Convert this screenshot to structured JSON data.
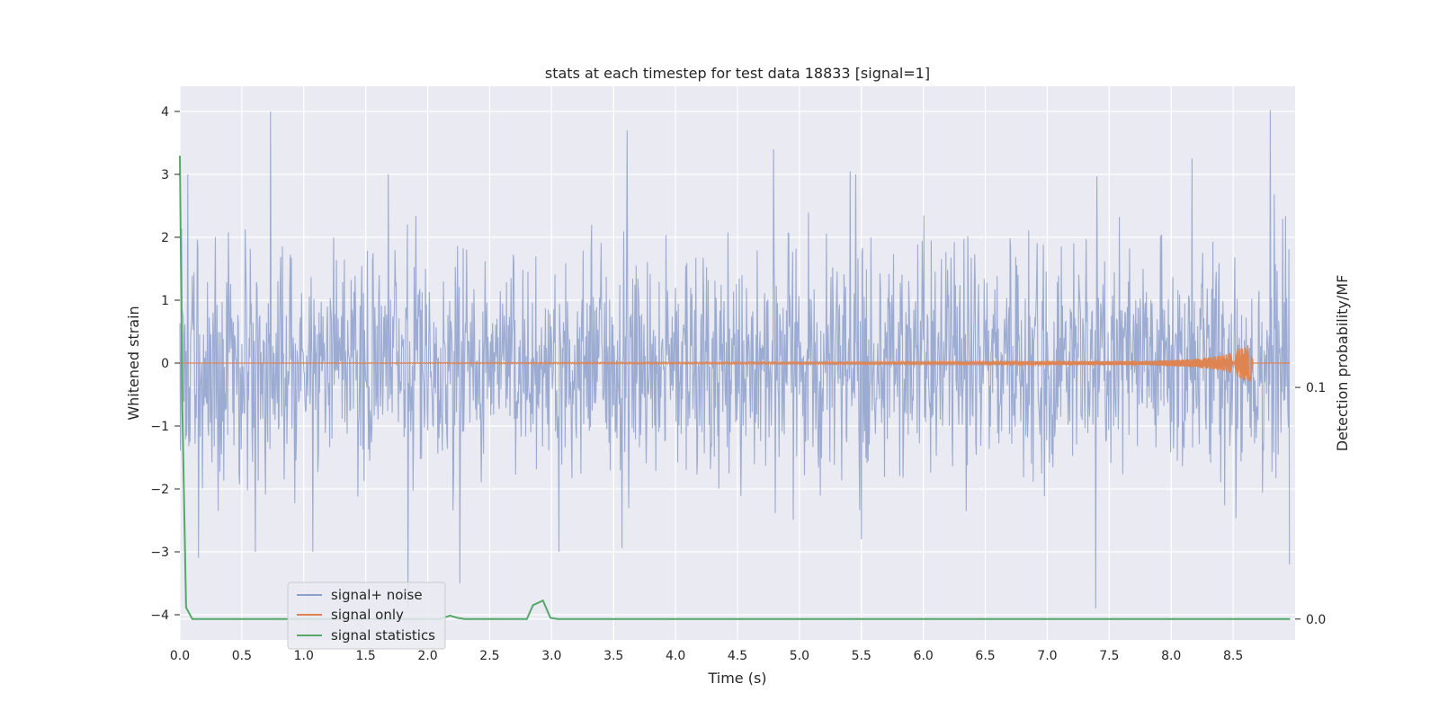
{
  "chart_data": {
    "type": "line",
    "title": "stats at each timestep for test data 18833 [signal=1]",
    "xlabel": "Time (s)",
    "ylabel": "Whitened strain",
    "y2label": "Detection probability/MF",
    "xlim": [
      0.0,
      9.0
    ],
    "ylim": [
      -4.4,
      4.4
    ],
    "y2lim": [
      -0.009,
      0.23
    ],
    "x_ticks": [
      0.0,
      0.5,
      1.0,
      1.5,
      2.0,
      2.5,
      3.0,
      3.5,
      4.0,
      4.5,
      5.0,
      5.5,
      6.0,
      6.5,
      7.0,
      7.5,
      8.0,
      8.5
    ],
    "x_tick_labels": [
      "0.0",
      "0.5",
      "1.0",
      "1.5",
      "2.0",
      "2.5",
      "3.0",
      "3.5",
      "4.0",
      "4.5",
      "5.0",
      "5.5",
      "6.0",
      "6.5",
      "7.0",
      "7.5",
      "8.0",
      "8.5"
    ],
    "y_ticks": [
      -4,
      -3,
      -2,
      -1,
      0,
      1,
      2,
      3,
      4
    ],
    "y_tick_labels": [
      "−4",
      "−3",
      "−2",
      "−1",
      "0",
      "1",
      "2",
      "3",
      "4"
    ],
    "y2_ticks": [
      0.0,
      0.1
    ],
    "y2_tick_labels": [
      "0.0",
      "0.1"
    ],
    "grid": true,
    "legend_position": "lower-left",
    "colors": {
      "background": "#eaeaf2",
      "grid": "#ffffff",
      "signal_noise": "#8da0cb",
      "signal_only": "#dd8452",
      "signal_statistics": "#55a868"
    },
    "series": [
      {
        "name": "signal+ noise",
        "axis": "left",
        "description_kind": "noise",
        "sample_rate": 220,
        "std": 0.9,
        "peaks": [
          {
            "x": 0.73,
            "y": 4.0
          },
          {
            "x": 3.61,
            "y": 3.7
          },
          {
            "x": 4.79,
            "y": 3.4
          },
          {
            "x": 5.41,
            "y": 3.05
          },
          {
            "x": 8.8,
            "y": 4.02
          },
          {
            "x": 8.17,
            "y": 3.25
          },
          {
            "x": 1.84,
            "y": -3.9
          },
          {
            "x": 7.39,
            "y": -3.9
          },
          {
            "x": 2.26,
            "y": -3.5
          },
          {
            "x": 8.96,
            "y": -3.2
          },
          {
            "x": 0.15,
            "y": -3.1
          },
          {
            "x": 5.5,
            "y": -2.8
          }
        ]
      },
      {
        "name": "signal only",
        "axis": "left",
        "x": [
          0.0,
          7.8,
          8.2,
          8.4,
          8.5,
          8.58,
          8.64,
          8.66,
          9.0
        ],
        "y_envelope": [
          0.0,
          0.03,
          0.07,
          0.12,
          0.18,
          0.27,
          0.3,
          0.0,
          0.0
        ],
        "chirp": true
      },
      {
        "name": "signal statistics",
        "axis": "right",
        "x": [
          0.0,
          0.02,
          0.05,
          0.1,
          0.15,
          0.3,
          0.6,
          1.0,
          1.5,
          2.0,
          2.1,
          2.18,
          2.24,
          2.3,
          2.8,
          2.85,
          2.93,
          2.99,
          3.05,
          3.5,
          5.0,
          7.0,
          8.96
        ],
        "y": [
          0.2,
          0.09,
          0.005,
          0.0,
          0.0,
          0.0,
          0.0,
          0.0,
          0.0,
          0.0,
          0.0,
          0.0015,
          0.0005,
          0.0,
          0.0,
          0.006,
          0.008,
          0.0005,
          0.0,
          0.0,
          0.0,
          0.0,
          0.0
        ]
      }
    ]
  }
}
